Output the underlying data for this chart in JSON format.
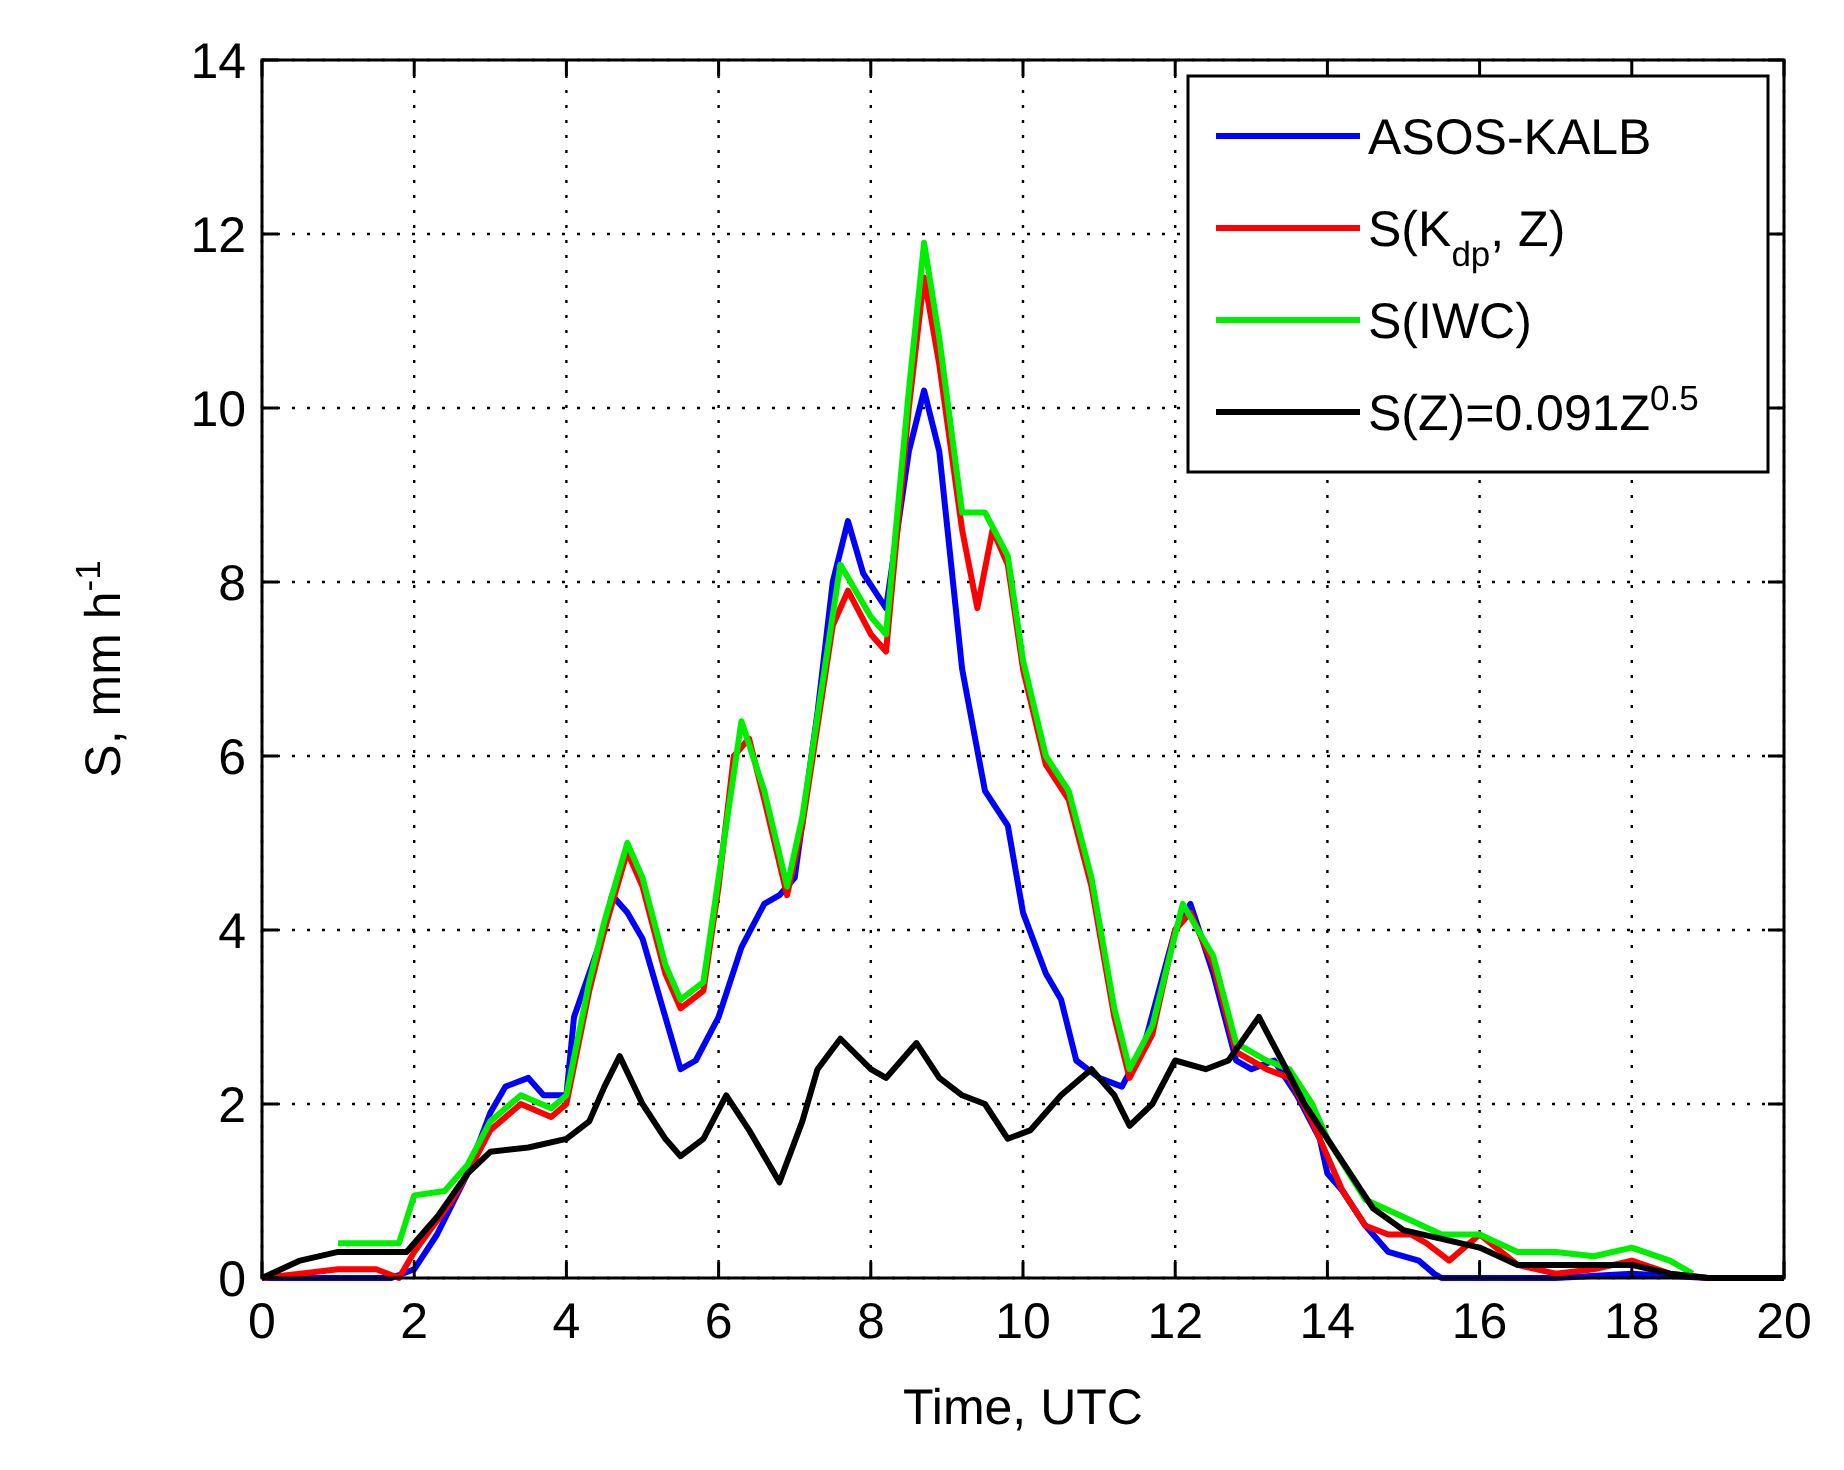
{
  "chart_data": {
    "type": "line",
    "xlabel": "Time, UTC",
    "ylabel": "S, mm h$^{-1}$",
    "xlim": [
      0,
      20
    ],
    "xticks": [
      0,
      2,
      4,
      6,
      8,
      10,
      12,
      14,
      16,
      18,
      20
    ],
    "ylim": [
      0,
      14
    ],
    "yticks": [
      0,
      2,
      4,
      6,
      8,
      10,
      12,
      14
    ],
    "grid": true,
    "legend": "top right",
    "line_style": "solid",
    "series": [
      {
        "name": "ASOS-KALB",
        "color": "#0000ff",
        "x": [
          0,
          1,
          1.7,
          2,
          2.3,
          2.7,
          3,
          3.2,
          3.5,
          3.7,
          4,
          4.1,
          4.3,
          4.5,
          4.6,
          4.8,
          5,
          5.2,
          5.5,
          5.7,
          6,
          6.3,
          6.6,
          6.8,
          7,
          7.3,
          7.5,
          7.7,
          7.9,
          8.2,
          8.5,
          8.7,
          8.9,
          9.2,
          9.5,
          9.8,
          10,
          10.3,
          10.5,
          10.7,
          11,
          11.3,
          11.6,
          12,
          12.2,
          12.5,
          12.8,
          13,
          13.3,
          13.6,
          13.9,
          14,
          14.2,
          14.5,
          14.8,
          15.2,
          15.4,
          15.5,
          16,
          17,
          18,
          19,
          20
        ],
        "values": [
          0,
          0,
          0,
          0.1,
          0.5,
          1.2,
          1.9,
          2.2,
          2.3,
          2.1,
          2.1,
          3,
          3.5,
          4,
          4.4,
          4.2,
          3.9,
          3.3,
          2.4,
          2.5,
          3,
          3.8,
          4.3,
          4.4,
          4.6,
          6.5,
          8,
          8.7,
          8.1,
          7.7,
          9.5,
          10.2,
          9.5,
          7,
          5.6,
          5.2,
          4.2,
          3.5,
          3.2,
          2.5,
          2.3,
          2.2,
          2.7,
          4,
          4.3,
          3.5,
          2.5,
          2.4,
          2.5,
          2.1,
          1.6,
          1.2,
          1,
          0.6,
          0.3,
          0.2,
          0.05,
          0,
          0,
          0,
          0.05,
          0,
          0
        ]
      },
      {
        "name": "S(K$_{dp}$, Z)",
        "color": "#ff0000",
        "x": [
          0,
          0.5,
          1,
          1.5,
          1.8,
          2,
          2.5,
          2.7,
          3,
          3.4,
          3.8,
          4,
          4.3,
          4.5,
          4.8,
          5,
          5.3,
          5.5,
          5.8,
          6,
          6.2,
          6.4,
          6.6,
          6.9,
          7.1,
          7.5,
          7.7,
          8,
          8.2,
          8.5,
          8.7,
          8.9,
          9.2,
          9.4,
          9.6,
          9.8,
          10,
          10.3,
          10.6,
          10.9,
          11.2,
          11.4,
          11.7,
          12,
          12.2,
          12.5,
          12.8,
          13.2,
          13.5,
          13.8,
          14,
          14.2,
          14.5,
          14.8,
          15.1,
          15.3,
          15.6,
          16,
          16.5,
          17,
          17.5,
          18,
          18.5,
          19
        ],
        "values": [
          0,
          0.05,
          0.1,
          0.1,
          0,
          0.3,
          0.9,
          1.2,
          1.7,
          2,
          1.85,
          2,
          3.3,
          4,
          4.9,
          4.5,
          3.5,
          3.1,
          3.3,
          4.5,
          6,
          6.2,
          5.5,
          4.4,
          5.2,
          7.5,
          7.9,
          7.4,
          7.2,
          10,
          11.5,
          10.5,
          8.6,
          7.7,
          8.6,
          8.2,
          7,
          5.9,
          5.5,
          4.5,
          3,
          2.3,
          2.8,
          4,
          4.2,
          3.6,
          2.6,
          2.4,
          2.3,
          1.8,
          1.4,
          1,
          0.6,
          0.5,
          0.5,
          0.4,
          0.2,
          0.5,
          0.15,
          0.05,
          0.1,
          0.2,
          0.05,
          0
        ]
      },
      {
        "name": "S(IWC)",
        "color": "#00ee00",
        "x": [
          1,
          1.5,
          1.8,
          2,
          2.4,
          2.7,
          3,
          3.4,
          3.8,
          4,
          4.3,
          4.5,
          4.8,
          5,
          5.3,
          5.5,
          5.8,
          6,
          6.3,
          6.6,
          6.9,
          7.1,
          7.6,
          8,
          8.2,
          8.5,
          8.7,
          8.9,
          9.2,
          9.5,
          9.8,
          10,
          10.3,
          10.6,
          10.9,
          11.2,
          11.4,
          11.7,
          12.1,
          12.5,
          12.8,
          13.2,
          13.5,
          13.8,
          14,
          14.5,
          15,
          15.5,
          16,
          16.5,
          17,
          17.5,
          18,
          18.5,
          18.8
        ],
        "values": [
          0.4,
          0.4,
          0.4,
          0.95,
          1,
          1.3,
          1.8,
          2.1,
          1.95,
          2.1,
          3.4,
          4.1,
          5,
          4.6,
          3.6,
          3.2,
          3.4,
          4.6,
          6.4,
          5.6,
          4.5,
          5.3,
          8.2,
          7.6,
          7.4,
          10.2,
          11.9,
          10.8,
          8.8,
          8.8,
          8.3,
          7.1,
          6,
          5.6,
          4.6,
          3.1,
          2.4,
          2.9,
          4.3,
          3.7,
          2.7,
          2.5,
          2.4,
          2,
          1.6,
          0.9,
          0.7,
          0.5,
          0.5,
          0.3,
          0.3,
          0.25,
          0.35,
          0.2,
          0.05
        ]
      },
      {
        "name": "S(Z)=0.091Z$^{0.5}$",
        "color": "#000000",
        "x": [
          0,
          0.5,
          1,
          1.5,
          1.9,
          2.3,
          2.7,
          3,
          3.5,
          4,
          4.3,
          4.5,
          4.7,
          5,
          5.3,
          5.5,
          5.8,
          6.1,
          6.4,
          6.8,
          7.1,
          7.3,
          7.6,
          8,
          8.2,
          8.6,
          8.9,
          9.2,
          9.5,
          9.8,
          10.1,
          10.5,
          10.9,
          11.2,
          11.4,
          11.7,
          12,
          12.4,
          12.7,
          13.1,
          13.4,
          13.7,
          14,
          14.3,
          14.6,
          15,
          15.5,
          16,
          16.5,
          17,
          17.5,
          18,
          18.5,
          19,
          20
        ],
        "values": [
          0,
          0.2,
          0.3,
          0.3,
          0.3,
          0.7,
          1.2,
          1.45,
          1.5,
          1.6,
          1.8,
          2.2,
          2.55,
          2,
          1.6,
          1.4,
          1.6,
          2.1,
          1.7,
          1.1,
          1.8,
          2.4,
          2.75,
          2.4,
          2.3,
          2.7,
          2.3,
          2.1,
          2,
          1.6,
          1.7,
          2.1,
          2.4,
          2.1,
          1.75,
          2,
          2.5,
          2.4,
          2.5,
          3,
          2.5,
          2,
          1.6,
          1.2,
          0.8,
          0.55,
          0.45,
          0.35,
          0.15,
          0.15,
          0.15,
          0.15,
          0.05,
          0,
          0
        ]
      }
    ]
  }
}
